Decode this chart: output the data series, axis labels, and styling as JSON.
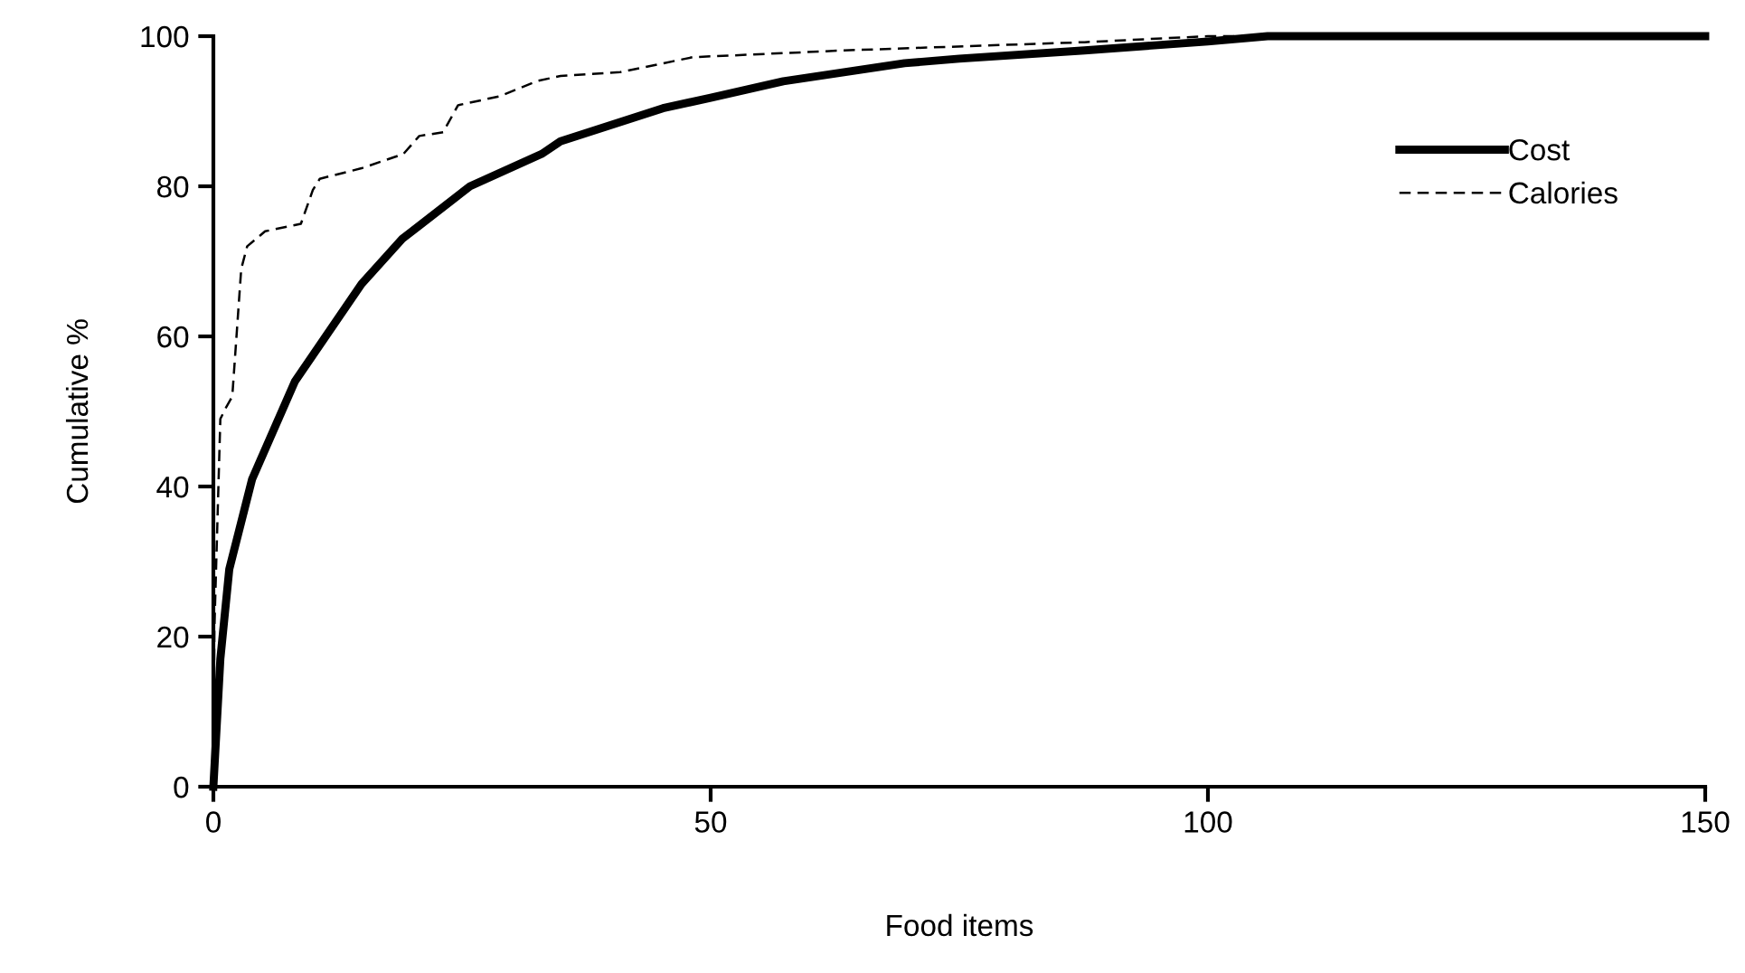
{
  "chart_data": {
    "type": "line",
    "xlabel": "Food items",
    "ylabel": "Cumulative %",
    "xlim": [
      0,
      150
    ],
    "xticks": [
      0,
      50,
      100,
      150
    ],
    "ylim": [
      0,
      100
    ],
    "yticks": [
      0,
      20,
      40,
      60,
      80,
      100
    ],
    "grid": false,
    "legend": "top right",
    "marker": "none",
    "series": [
      {
        "name": "Cost",
        "color": "#000000",
        "line_style": "solid",
        "x": [
          0,
          0.7,
          1.6,
          3.9,
          8.2,
          14.9,
          19,
          25.8,
          33,
          34.9,
          45.2,
          50,
          57.3,
          69.5,
          75,
          87.6,
          100,
          106,
          120,
          150
        ],
        "values": [
          0,
          17,
          29,
          41,
          54,
          67,
          73,
          80,
          84.3,
          86,
          90.4,
          91.8,
          94,
          96.4,
          97,
          98.1,
          99.3,
          100,
          100,
          100
        ]
      },
      {
        "name": "Calories",
        "color": "#000000",
        "line_style": "dashed",
        "x": [
          0,
          0.1,
          0.7,
          1.3,
          1.9,
          2.8,
          3.4,
          5.2,
          8.8,
          10,
          10.7,
          14.9,
          19.1,
          20.7,
          23.1,
          24.6,
          28.8,
          32.5,
          34.9,
          40.9,
          48.2,
          63.4,
          87.6,
          100,
          120,
          150
        ],
        "values": [
          0,
          21,
          49,
          50.6,
          52,
          69,
          72,
          74,
          75,
          79.5,
          81,
          82.4,
          84.3,
          86.7,
          87.2,
          90.8,
          92,
          94,
          94.7,
          95.2,
          97.2,
          98.1,
          99.2,
          100,
          100,
          100
        ]
      }
    ]
  }
}
